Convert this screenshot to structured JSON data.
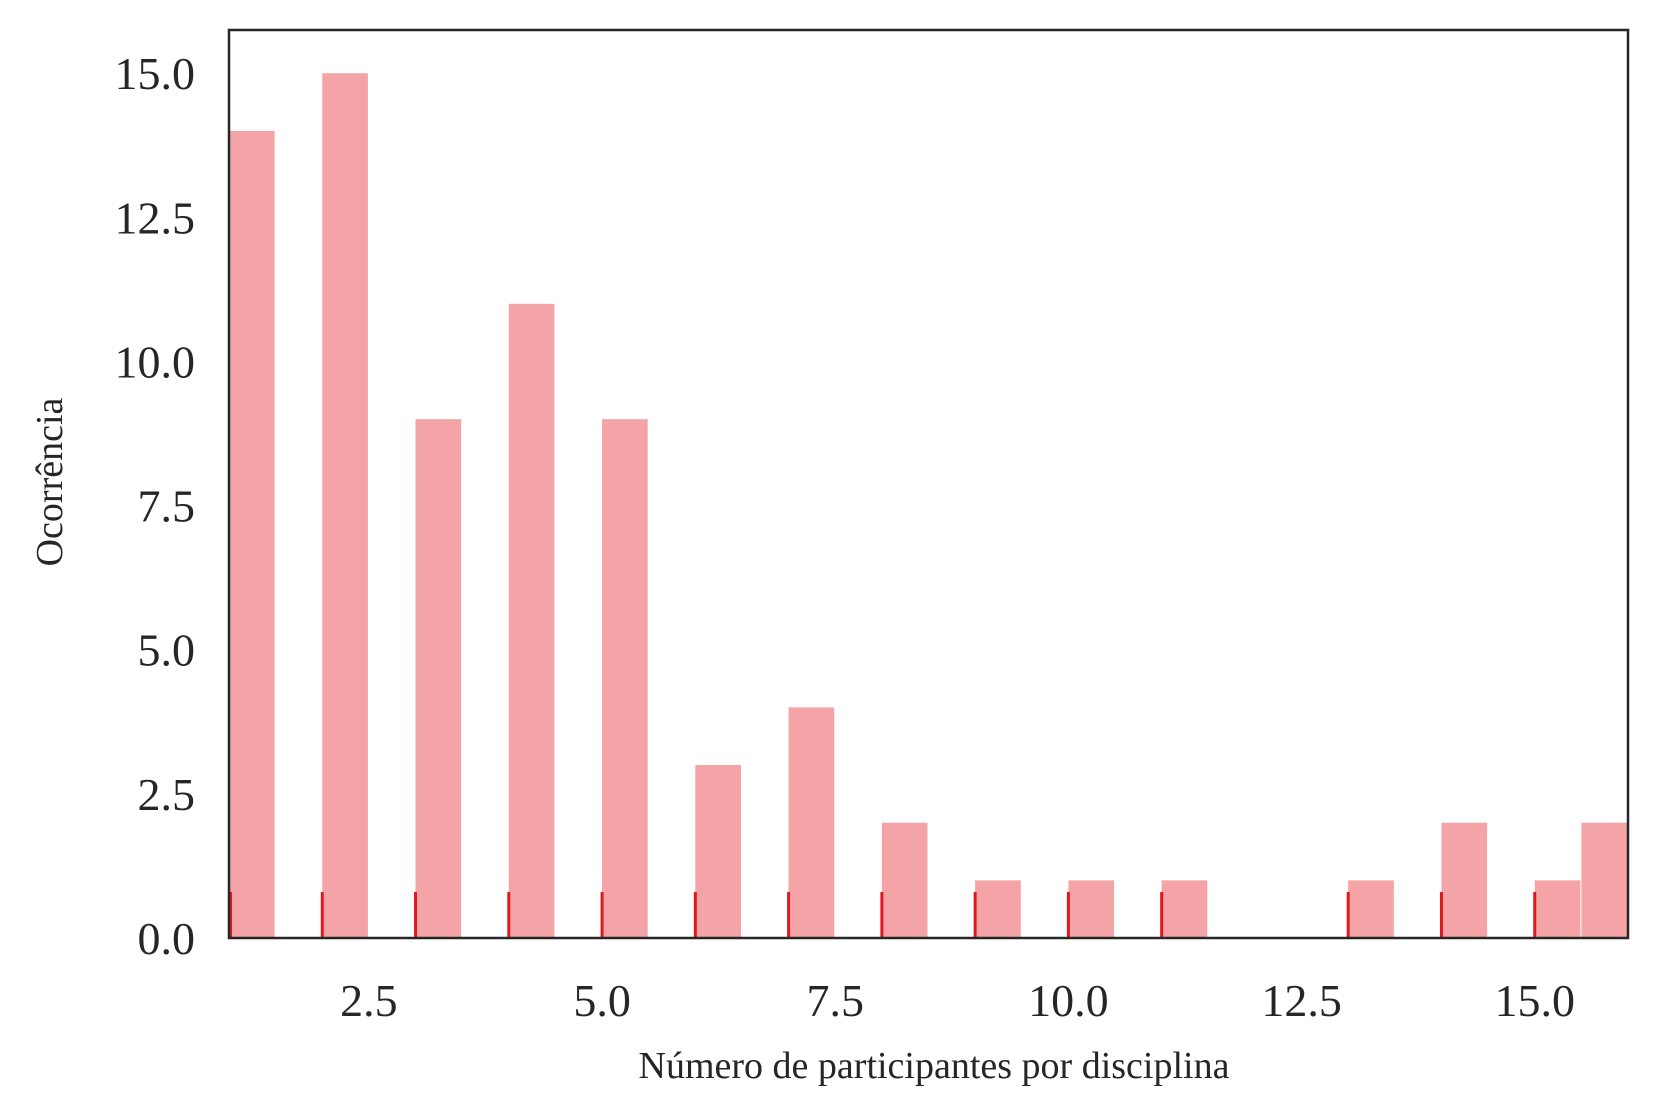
{
  "chart_data": {
    "type": "bar",
    "title": "",
    "xlabel": "Número de participantes por disciplina",
    "ylabel": "Ocorrência",
    "xlim": [
      1,
      16
    ],
    "ylim": [
      0,
      15.75
    ],
    "xticks": [
      "2.5",
      "5.0",
      "7.5",
      "10.0",
      "12.5",
      "15.0"
    ],
    "yticks": [
      "0.0",
      "2.5",
      "5.0",
      "7.5",
      "10.0",
      "12.5",
      "15.0"
    ],
    "grid": false,
    "legend": "none",
    "bar_color": "#f4a3a6",
    "rug_color": "#e0191f",
    "frame_color": "#262626",
    "bars": [
      {
        "x0": 1.0,
        "x1": 1.5,
        "value": 14
      },
      {
        "x0": 2.0,
        "x1": 2.5,
        "value": 15
      },
      {
        "x0": 3.0,
        "x1": 3.5,
        "value": 9
      },
      {
        "x0": 4.0,
        "x1": 4.5,
        "value": 11
      },
      {
        "x0": 5.0,
        "x1": 5.5,
        "value": 9
      },
      {
        "x0": 6.0,
        "x1": 6.5,
        "value": 3
      },
      {
        "x0": 7.0,
        "x1": 7.5,
        "value": 4
      },
      {
        "x0": 8.0,
        "x1": 8.5,
        "value": 2
      },
      {
        "x0": 9.0,
        "x1": 9.5,
        "value": 1
      },
      {
        "x0": 10.0,
        "x1": 10.5,
        "value": 1
      },
      {
        "x0": 11.0,
        "x1": 11.5,
        "value": 1
      },
      {
        "x0": 13.0,
        "x1": 13.5,
        "value": 1
      },
      {
        "x0": 14.0,
        "x1": 14.5,
        "value": 2
      },
      {
        "x0": 15.0,
        "x1": 15.5,
        "value": 1
      },
      {
        "x0": 15.5,
        "x1": 16.0,
        "value": 2
      }
    ],
    "rug": [
      1,
      2,
      3,
      4,
      5,
      6,
      7,
      8,
      9,
      10,
      11,
      13,
      14,
      15
    ]
  }
}
